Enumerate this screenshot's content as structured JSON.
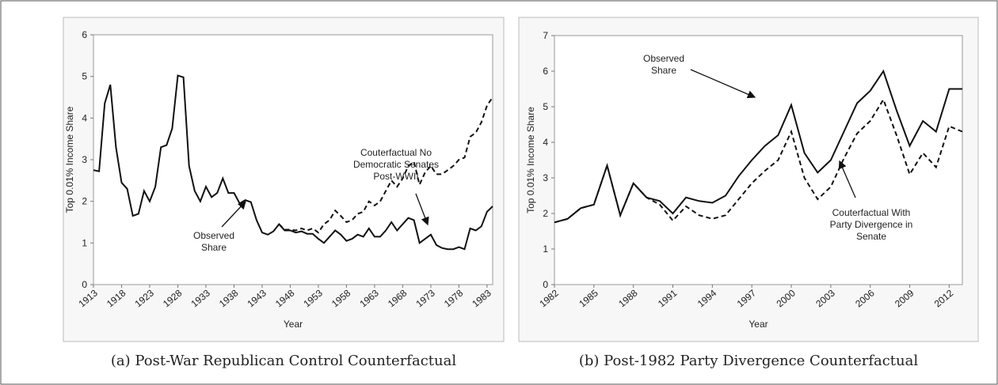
{
  "chart_data": [
    {
      "type": "line",
      "caption": "(a) Post-War Republican Control Counterfactual",
      "x_label": "Year",
      "y_label": "Top 0.01% Income Share",
      "x": [
        1913,
        1914,
        1915,
        1916,
        1917,
        1918,
        1919,
        1920,
        1921,
        1922,
        1923,
        1924,
        1925,
        1926,
        1927,
        1928,
        1929,
        1930,
        1931,
        1932,
        1933,
        1934,
        1935,
        1936,
        1937,
        1938,
        1939,
        1940,
        1941,
        1942,
        1943,
        1944,
        1945,
        1946,
        1947,
        1948,
        1949,
        1950,
        1951,
        1952,
        1953,
        1954,
        1955,
        1956,
        1957,
        1958,
        1959,
        1960,
        1961,
        1962,
        1963,
        1964,
        1965,
        1966,
        1967,
        1968,
        1969,
        1970,
        1971,
        1972,
        1973,
        1974,
        1975,
        1976,
        1977,
        1978,
        1979,
        1980,
        1981,
        1982,
        1983,
        1984
      ],
      "series": [
        {
          "name": "Observed Share",
          "color": "#111111",
          "style": "solid",
          "values": [
            2.75,
            2.72,
            4.35,
            4.8,
            3.3,
            2.45,
            2.3,
            1.65,
            1.7,
            2.25,
            2.0,
            2.35,
            3.3,
            3.35,
            3.75,
            5.02,
            4.98,
            2.85,
            2.25,
            2.0,
            2.35,
            2.1,
            2.2,
            2.55,
            2.2,
            2.2,
            1.95,
            2.03,
            1.98,
            1.55,
            1.25,
            1.2,
            1.28,
            1.45,
            1.3,
            1.3,
            1.25,
            1.28,
            1.22,
            1.22,
            1.1,
            1.0,
            1.15,
            1.3,
            1.2,
            1.05,
            1.1,
            1.2,
            1.15,
            1.35,
            1.15,
            1.15,
            1.3,
            1.5,
            1.3,
            1.45,
            1.6,
            1.55,
            1.0,
            1.1,
            1.2,
            0.95,
            0.88,
            0.85,
            0.85,
            0.9,
            0.85,
            1.35,
            1.3,
            1.4,
            1.75,
            1.88
          ]
        },
        {
          "name": "Couterfactual No Democratic Senates Post-WWII",
          "color": "#111111",
          "style": "dashed",
          "values": [
            null,
            null,
            null,
            null,
            null,
            null,
            null,
            null,
            null,
            null,
            null,
            null,
            null,
            null,
            null,
            null,
            null,
            null,
            null,
            null,
            null,
            null,
            null,
            null,
            null,
            null,
            null,
            null,
            null,
            null,
            null,
            null,
            null,
            1.45,
            1.32,
            1.32,
            1.3,
            1.35,
            1.3,
            1.35,
            1.25,
            1.45,
            1.55,
            1.78,
            1.65,
            1.5,
            1.55,
            1.7,
            1.75,
            2.0,
            1.9,
            2.0,
            2.25,
            2.5,
            2.35,
            2.55,
            2.85,
            2.95,
            2.4,
            2.7,
            2.85,
            2.65,
            2.65,
            2.75,
            2.85,
            3.0,
            3.05,
            3.55,
            3.65,
            3.9,
            4.3,
            4.5
          ]
        }
      ],
      "annotations": [
        {
          "lines": [
            "Couterfactual No",
            "Democratic Senates",
            "Post-WWII"
          ]
        },
        {
          "lines": [
            "Observed",
            "Share"
          ]
        }
      ],
      "xlim": [
        1913,
        1984
      ],
      "xticks": [
        1913,
        1918,
        1923,
        1928,
        1933,
        1938,
        1943,
        1948,
        1953,
        1958,
        1963,
        1968,
        1973,
        1978,
        1983
      ],
      "ylim": [
        0,
        6
      ],
      "yticks": [
        0,
        1,
        2,
        3,
        4,
        5,
        6
      ]
    },
    {
      "type": "line",
      "caption": "(b) Post-1982 Party Divergence Counterfactual",
      "x_label": "Year",
      "y_label": "Top 0.01% Income Share",
      "x": [
        1982,
        1983,
        1984,
        1985,
        1986,
        1987,
        1988,
        1989,
        1990,
        1991,
        1992,
        1993,
        1994,
        1995,
        1996,
        1997,
        1998,
        1999,
        2000,
        2001,
        2002,
        2003,
        2004,
        2005,
        2006,
        2007,
        2008,
        2009,
        2010,
        2011,
        2012,
        2013
      ],
      "series": [
        {
          "name": "Observed Share",
          "color": "#111111",
          "style": "solid",
          "values": [
            1.75,
            1.85,
            2.15,
            2.25,
            3.35,
            1.95,
            2.85,
            2.45,
            2.35,
            2.0,
            2.45,
            2.35,
            2.3,
            2.5,
            3.05,
            3.5,
            3.9,
            4.2,
            5.05,
            3.7,
            3.15,
            3.5,
            4.3,
            5.1,
            5.45,
            6.0,
            4.9,
            3.9,
            4.6,
            4.3,
            5.5,
            5.5
          ]
        },
        {
          "name": "Couterfactual With Party Divergence in Senate",
          "color": "#111111",
          "style": "dashed",
          "values": [
            1.75,
            1.85,
            2.15,
            2.25,
            3.35,
            1.95,
            2.85,
            2.45,
            2.25,
            1.8,
            2.2,
            1.95,
            1.85,
            1.95,
            2.4,
            2.85,
            3.2,
            3.5,
            4.3,
            3.0,
            2.4,
            2.75,
            3.55,
            4.25,
            4.6,
            5.2,
            4.2,
            3.1,
            3.7,
            3.3,
            4.45,
            4.3
          ]
        }
      ],
      "annotations": [
        {
          "lines": [
            "Observed",
            "Share"
          ]
        },
        {
          "lines": [
            "Couterfactual With",
            "Party Divergence in",
            "Senate"
          ]
        }
      ],
      "xlim": [
        1982,
        2013
      ],
      "xticks": [
        1982,
        1985,
        1988,
        1991,
        1994,
        1997,
        2000,
        2003,
        2006,
        2009,
        2012
      ],
      "ylim": [
        0,
        7
      ],
      "yticks": [
        0,
        1,
        2,
        3,
        4,
        5,
        6,
        7
      ]
    }
  ]
}
